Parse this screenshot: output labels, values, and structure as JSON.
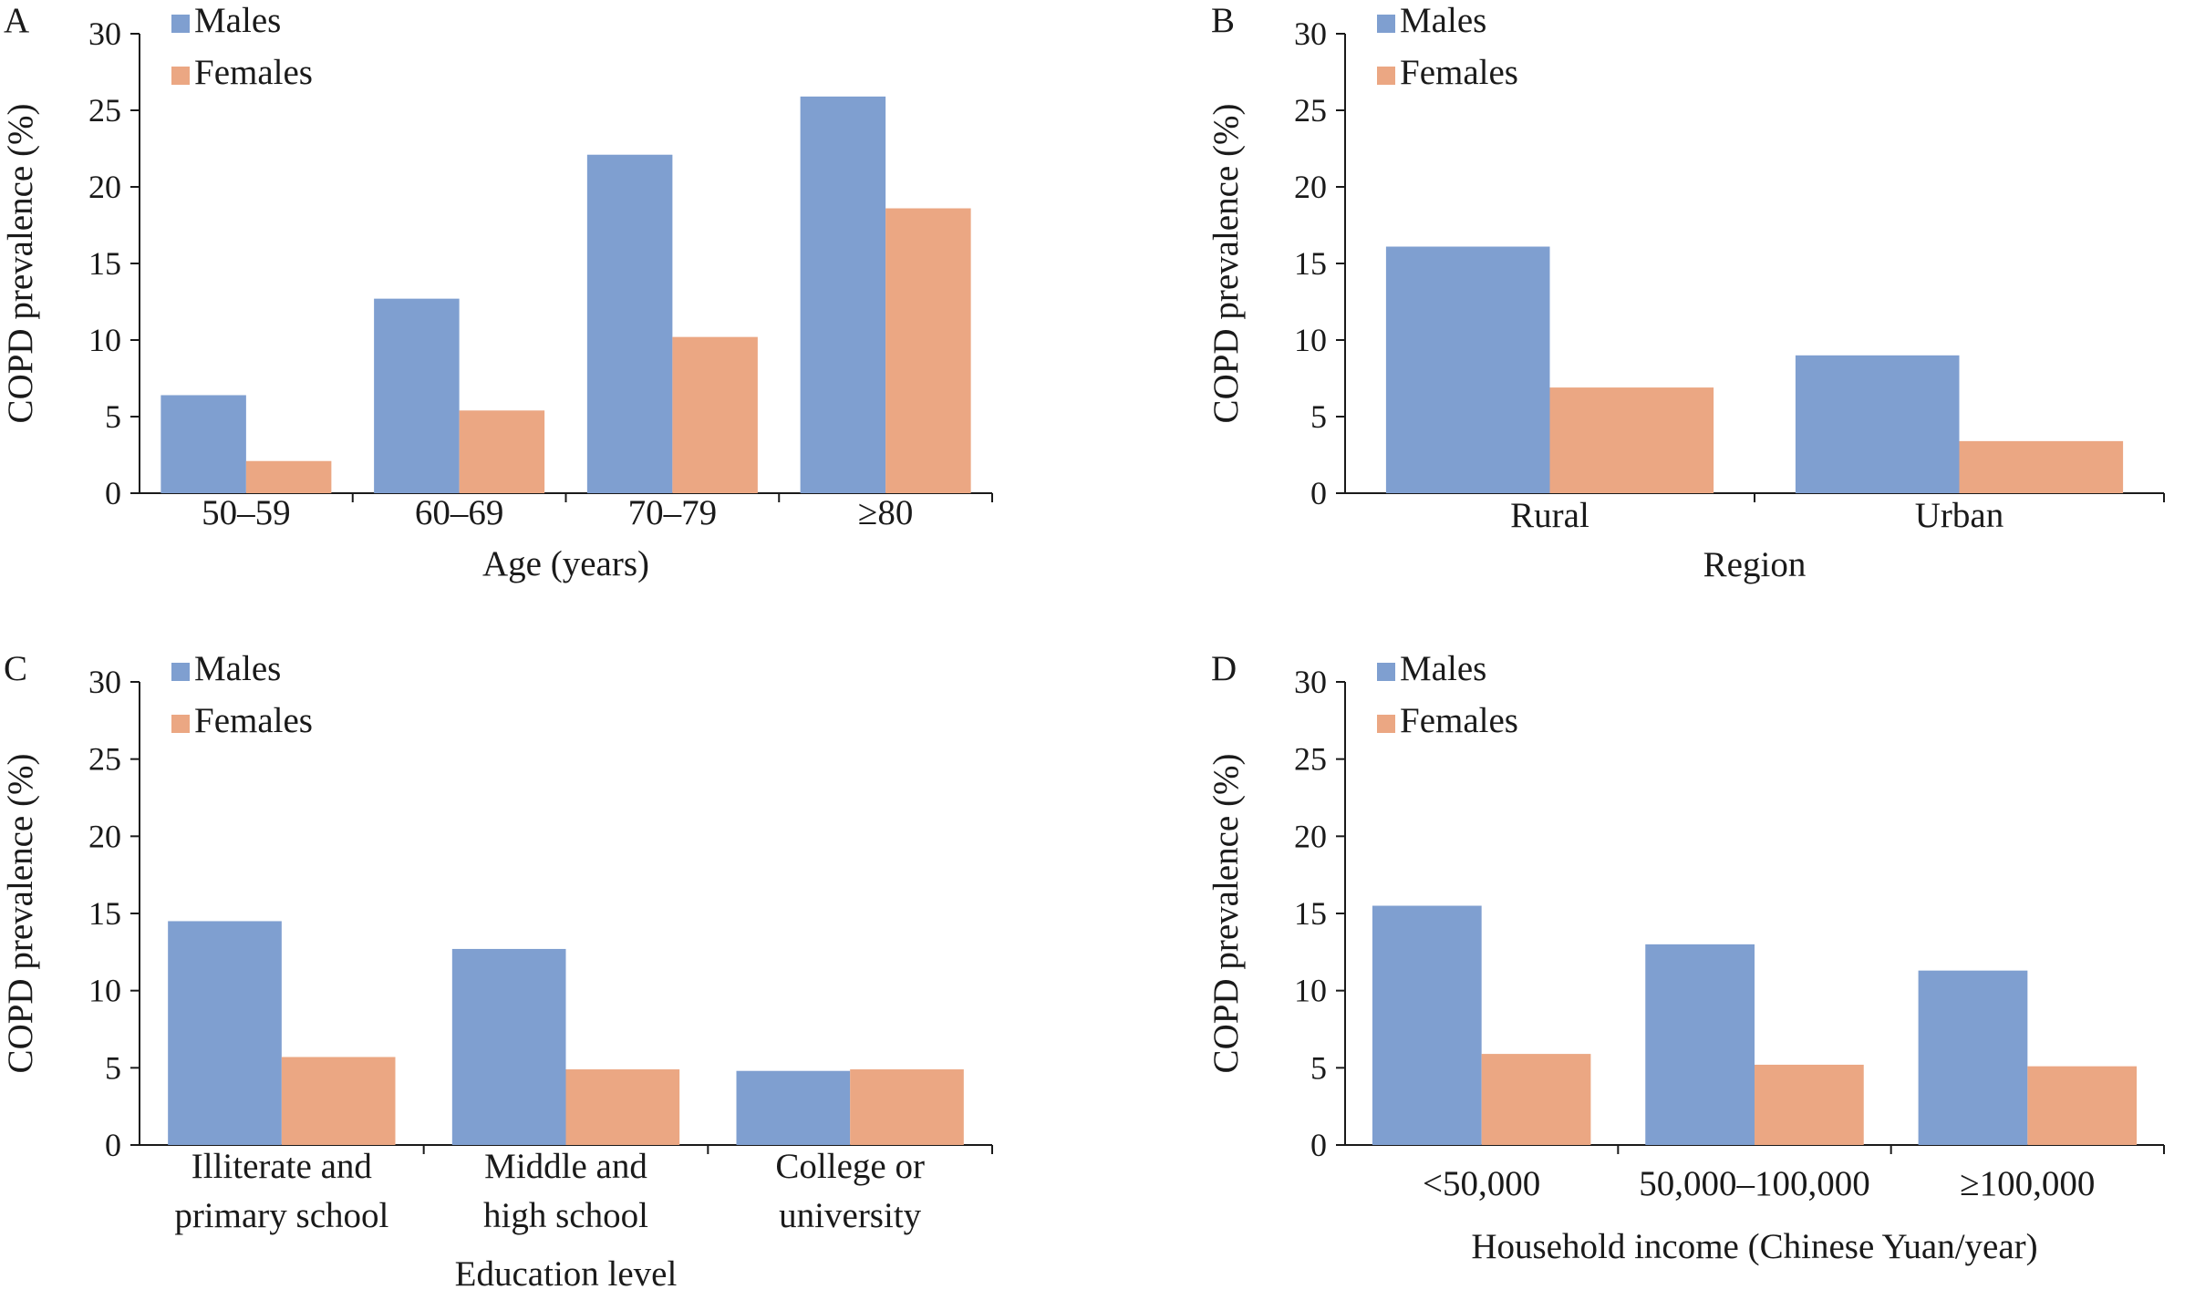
{
  "colors": {
    "males": "#7f9fd0",
    "females": "#eba783",
    "axis": "#1a1a1a"
  },
  "chart_data": [
    {
      "panel": "A",
      "type": "bar",
      "title": "",
      "ylabel": "COPD prevalence (%)",
      "xlabel": "Age (years)",
      "ylim": [
        0,
        30
      ],
      "yticks": [
        "0",
        "5",
        "10",
        "15",
        "20",
        "25",
        "30"
      ],
      "categories": [
        [
          "50–59"
        ],
        [
          "60–69"
        ],
        [
          "70–79"
        ],
        [
          "≥80"
        ]
      ],
      "series": [
        {
          "name": "Males",
          "values": [
            6.4,
            12.7,
            22.1,
            25.9
          ]
        },
        {
          "name": "Females",
          "values": [
            2.1,
            5.4,
            10.2,
            18.6
          ]
        }
      ],
      "legend": "top-left",
      "grid": false
    },
    {
      "panel": "B",
      "type": "bar",
      "title": "",
      "ylabel": "COPD prevalence (%)",
      "xlabel": "Region",
      "ylim": [
        0,
        30
      ],
      "yticks": [
        "0",
        "5",
        "10",
        "15",
        "20",
        "25",
        "30"
      ],
      "categories": [
        [
          "Rural"
        ],
        [
          "Urban"
        ]
      ],
      "series": [
        {
          "name": "Males",
          "values": [
            16.1,
            9.0
          ]
        },
        {
          "name": "Females",
          "values": [
            6.9,
            3.4
          ]
        }
      ],
      "legend": "top-left",
      "grid": false
    },
    {
      "panel": "C",
      "type": "bar",
      "title": "",
      "ylabel": "COPD prevalence (%)",
      "xlabel": "Education level",
      "ylim": [
        0,
        30
      ],
      "yticks": [
        "0",
        "5",
        "10",
        "15",
        "20",
        "25",
        "30"
      ],
      "categories": [
        [
          "Illiterate and",
          "primary school"
        ],
        [
          "Middle and",
          "high school"
        ],
        [
          "College or",
          "university"
        ]
      ],
      "series": [
        {
          "name": "Males",
          "values": [
            14.5,
            12.7,
            4.8
          ]
        },
        {
          "name": "Females",
          "values": [
            5.7,
            4.9,
            4.9
          ]
        }
      ],
      "legend": "top-left",
      "grid": false
    },
    {
      "panel": "D",
      "type": "bar",
      "title": "",
      "ylabel": "COPD prevalence (%)",
      "xlabel": "Household income (Chinese Yuan/year)",
      "ylim": [
        0,
        30
      ],
      "yticks": [
        "0",
        "5",
        "10",
        "15",
        "20",
        "25",
        "30"
      ],
      "categories": [
        [
          "<50,000"
        ],
        [
          "50,000–100,000"
        ],
        [
          "≥100,000"
        ]
      ],
      "series": [
        {
          "name": "Males",
          "values": [
            15.5,
            13.0,
            11.3
          ]
        },
        {
          "name": "Females",
          "values": [
            5.9,
            5.2,
            5.1
          ]
        }
      ],
      "legend": "top-left",
      "grid": false
    }
  ]
}
